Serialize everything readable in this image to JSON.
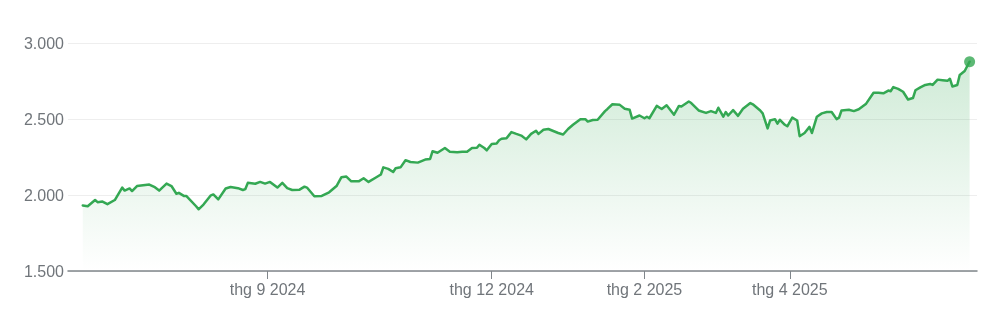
{
  "chart_data": {
    "type": "area",
    "xlim": [
      "2024-06-12",
      "2025-06-16"
    ],
    "ylim": [
      1500,
      3000
    ],
    "yticks": [
      {
        "value": 1500,
        "label": "1.500"
      },
      {
        "value": 2000,
        "label": "2.000"
      },
      {
        "value": 2500,
        "label": "2.500"
      },
      {
        "value": 3000,
        "label": "3.000"
      }
    ],
    "xticks": [
      {
        "value": "2024-09-01",
        "label": "thg 9 2024"
      },
      {
        "value": "2024-12-01",
        "label": "thg 12 2024"
      },
      {
        "value": "2025-02-01",
        "label": "thg 2 2025"
      },
      {
        "value": "2025-04-01",
        "label": "thg 4 2025"
      }
    ],
    "grid": "y",
    "marker": "none",
    "line_style": "solid",
    "series": [
      {
        "color": "#34a853",
        "x": [
          "2024-06-18",
          "2024-06-20",
          "2024-06-23",
          "2024-06-24",
          "2024-06-26",
          "2024-06-28",
          "2024-07-01",
          "2024-07-04",
          "2024-07-05",
          "2024-07-07",
          "2024-07-08",
          "2024-07-10",
          "2024-07-15",
          "2024-07-17",
          "2024-07-19",
          "2024-07-22",
          "2024-07-24",
          "2024-07-26",
          "2024-07-27",
          "2024-07-29",
          "2024-07-30",
          "2024-08-03",
          "2024-08-04",
          "2024-08-06",
          "2024-08-09",
          "2024-08-10",
          "2024-08-12",
          "2024-08-15",
          "2024-08-17",
          "2024-08-20",
          "2024-08-22",
          "2024-08-23",
          "2024-08-24",
          "2024-08-27",
          "2024-08-29",
          "2024-08-31",
          "2024-09-02",
          "2024-09-05",
          "2024-09-07",
          "2024-09-09",
          "2024-09-11",
          "2024-09-14",
          "2024-09-16",
          "2024-09-17",
          "2024-09-20",
          "2024-09-23",
          "2024-09-26",
          "2024-09-29",
          "2024-10-01",
          "2024-10-03",
          "2024-10-05",
          "2024-10-08",
          "2024-10-10",
          "2024-10-12",
          "2024-10-15",
          "2024-10-17",
          "2024-10-18",
          "2024-10-20",
          "2024-10-22",
          "2024-10-23",
          "2024-10-25",
          "2024-10-27",
          "2024-10-29",
          "2024-11-01",
          "2024-11-04",
          "2024-11-06",
          "2024-11-07",
          "2024-11-09",
          "2024-11-12",
          "2024-11-14",
          "2024-11-17",
          "2024-11-19",
          "2024-11-21",
          "2024-11-23",
          "2024-11-25",
          "2024-11-26",
          "2024-11-28",
          "2024-11-29",
          "2024-12-01",
          "2024-12-03",
          "2024-12-04",
          "2024-12-05",
          "2024-12-07",
          "2024-12-09",
          "2024-12-11",
          "2024-12-13",
          "2024-12-15",
          "2024-12-17",
          "2024-12-19",
          "2024-12-20",
          "2024-12-22",
          "2024-12-24",
          "2024-12-28",
          "2024-12-30",
          "2025-01-01",
          "2025-01-03",
          "2025-01-06",
          "2025-01-08",
          "2025-01-09",
          "2025-01-11",
          "2025-01-13",
          "2025-01-16",
          "2025-01-17",
          "2025-01-19",
          "2025-01-22",
          "2025-01-24",
          "2025-01-26",
          "2025-01-27",
          "2025-01-30",
          "2025-02-01",
          "2025-02-02",
          "2025-02-03",
          "2025-02-06",
          "2025-02-08",
          "2025-02-10",
          "2025-02-13",
          "2025-02-15",
          "2025-02-16",
          "2025-02-19",
          "2025-02-20",
          "2025-02-23",
          "2025-02-26",
          "2025-02-28",
          "2025-03-02",
          "2025-03-03",
          "2025-03-05",
          "2025-03-06",
          "2025-03-07",
          "2025-03-09",
          "2025-03-11",
          "2025-03-13",
          "2025-03-16",
          "2025-03-17",
          "2025-03-20",
          "2025-03-21",
          "2025-03-23",
          "2025-03-24",
          "2025-03-26",
          "2025-03-27",
          "2025-03-28",
          "2025-03-30",
          "2025-03-31",
          "2025-04-02",
          "2025-04-04",
          "2025-04-05",
          "2025-04-07",
          "2025-04-09",
          "2025-04-10",
          "2025-04-12",
          "2025-04-14",
          "2025-04-16",
          "2025-04-18",
          "2025-04-20",
          "2025-04-21",
          "2025-04-22",
          "2025-04-25",
          "2025-04-27",
          "2025-04-29",
          "2025-05-02",
          "2025-05-05",
          "2025-05-07",
          "2025-05-09",
          "2025-05-11",
          "2025-05-12",
          "2025-05-13",
          "2025-05-15",
          "2025-05-17",
          "2025-05-19",
          "2025-05-21",
          "2025-05-22",
          "2025-05-24",
          "2025-05-26",
          "2025-05-28",
          "2025-05-29",
          "2025-05-31",
          "2025-06-02",
          "2025-06-04",
          "2025-06-05",
          "2025-06-06",
          "2025-06-08",
          "2025-06-09",
          "2025-06-11",
          "2025-06-13"
        ],
        "values": [
          1931,
          1926,
          1967,
          1953,
          1957,
          1940,
          1967,
          2049,
          2029,
          2043,
          2026,
          2059,
          2069,
          2054,
          2029,
          2075,
          2059,
          2008,
          2014,
          1994,
          1994,
          1926,
          1906,
          1937,
          1998,
          2004,
          1971,
          2043,
          2053,
          2045,
          2033,
          2039,
          2080,
          2074,
          2086,
          2075,
          2086,
          2049,
          2080,
          2045,
          2033,
          2035,
          2055,
          2049,
          1992,
          1994,
          2018,
          2059,
          2117,
          2121,
          2090,
          2090,
          2110,
          2086,
          2115,
          2135,
          2182,
          2172,
          2151,
          2176,
          2182,
          2229,
          2217,
          2213,
          2233,
          2237,
          2288,
          2278,
          2309,
          2285,
          2282,
          2285,
          2285,
          2309,
          2311,
          2331,
          2309,
          2294,
          2335,
          2339,
          2360,
          2370,
          2373,
          2414,
          2402,
          2391,
          2366,
          2402,
          2423,
          2402,
          2429,
          2434,
          2408,
          2398,
          2434,
          2462,
          2499,
          2499,
          2483,
          2493,
          2495,
          2552,
          2566,
          2597,
          2593,
          2567,
          2561,
          2503,
          2523,
          2505,
          2515,
          2505,
          2586,
          2566,
          2590,
          2528,
          2586,
          2582,
          2615,
          2605,
          2556,
          2540,
          2552,
          2540,
          2574,
          2515,
          2546,
          2523,
          2558,
          2521,
          2567,
          2605,
          2597,
          2556,
          2537,
          2438,
          2490,
          2499,
          2469,
          2495,
          2462,
          2452,
          2509,
          2490,
          2387,
          2408,
          2448,
          2408,
          2515,
          2537,
          2546,
          2546,
          2499,
          2509,
          2556,
          2561,
          2552,
          2564,
          2601,
          2673,
          2673,
          2669,
          2687,
          2683,
          2710,
          2698,
          2679,
          2628,
          2638,
          2689,
          2708,
          2724,
          2730,
          2724,
          2759,
          2755,
          2751,
          2765,
          2714,
          2724,
          2790,
          2816,
          2877
        ]
      },
      {
        "type": "scatter",
        "color": "#34a853",
        "marker": "circle",
        "x": [
          "2025-06-13"
        ],
        "values": [
          2877
        ]
      }
    ]
  }
}
